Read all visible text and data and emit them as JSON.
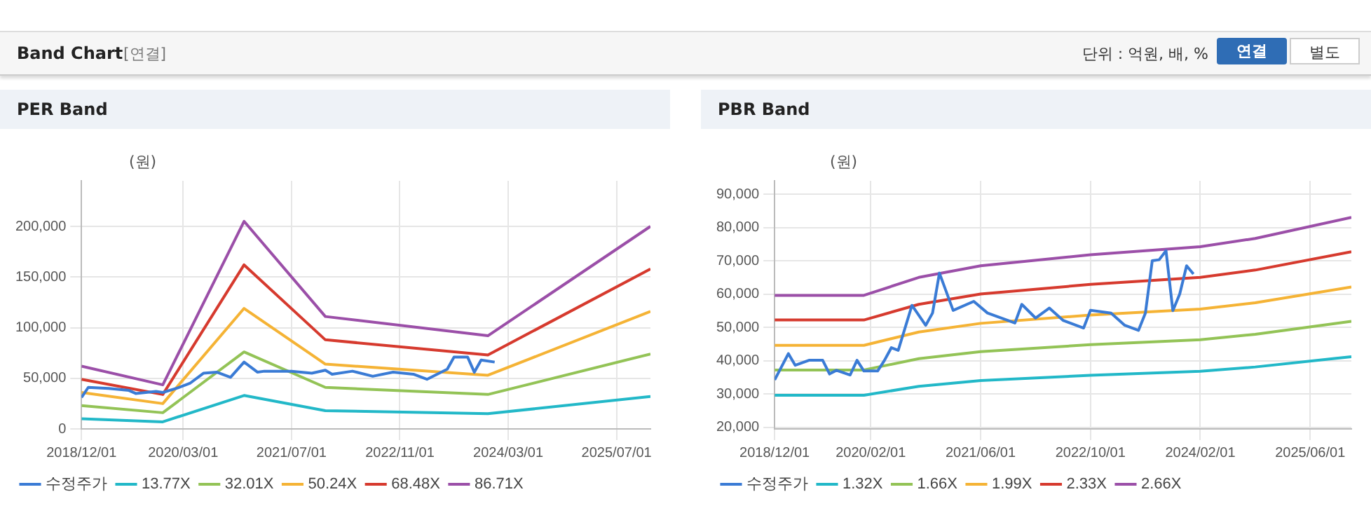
{
  "chart_data": [
    {
      "type": "line",
      "title": "PER Band",
      "ylabel": "(원)",
      "annotations": [
        "Band Chart",
        "[연결]",
        "단위 : 억원, 배, %",
        "연결",
        "별도"
      ],
      "xlim": [
        "2018-12",
        "2025-12"
      ],
      "xticks": [
        {
          "value": "2018-12",
          "label": "2018/12/01"
        },
        {
          "value": "2020-03",
          "label": "2020/03/01"
        },
        {
          "value": "2021-07",
          "label": "2021/07/01"
        },
        {
          "value": "2022-11",
          "label": "2022/11/01"
        },
        {
          "value": "2024-03",
          "label": "2024/03/01"
        },
        {
          "value": "2025-07",
          "label": "2025/07/01"
        }
      ],
      "ylim": [
        0,
        245000
      ],
      "yticks": [
        {
          "value": 0,
          "label": "0"
        },
        {
          "value": 50000,
          "label": "50,000"
        },
        {
          "value": 100000,
          "label": "100,000"
        },
        {
          "value": 150000,
          "label": "150,000"
        },
        {
          "value": 200000,
          "label": "200,000"
        }
      ],
      "grid": true,
      "legend": "bottom",
      "series": [
        {
          "name": "수정주가",
          "color": "#3a7bd5",
          "x": [
            "2018-12",
            "2019-01",
            "2019-04",
            "2019-07",
            "2019-08",
            "2019-11",
            "2019-12",
            "2020-02",
            "2020-04",
            "2020-06",
            "2020-08",
            "2020-10",
            "2020-12",
            "2021-02",
            "2021-03",
            "2021-07",
            "2021-10",
            "2021-12",
            "2022-01",
            "2022-04",
            "2022-07",
            "2022-10",
            "2023-01",
            "2023-03",
            "2023-06",
            "2023-07",
            "2023-09",
            "2023-10",
            "2023-11",
            "2024-01"
          ],
          "values": [
            31000,
            41000,
            40000,
            38000,
            35000,
            37000,
            36000,
            40000,
            45000,
            55000,
            56000,
            51000,
            66000,
            56000,
            57000,
            57000,
            55000,
            58000,
            54000,
            57000,
            52000,
            56000,
            54000,
            49000,
            59000,
            71000,
            71000,
            56000,
            68000,
            66000
          ]
        },
        {
          "name": "13.77X",
          "color": "#22b8c8",
          "x": [
            "2018-12",
            "2019-12",
            "2020-12",
            "2021-12",
            "2023-12",
            "2025-12"
          ],
          "values": [
            10000,
            7000,
            33000,
            18000,
            15000,
            32000
          ]
        },
        {
          "name": "32.01X",
          "color": "#93c356",
          "x": [
            "2018-12",
            "2019-12",
            "2020-12",
            "2021-12",
            "2023-12",
            "2025-12"
          ],
          "values": [
            23000,
            16000,
            76000,
            41000,
            34000,
            74000
          ]
        },
        {
          "name": "50.24X",
          "color": "#f5b335",
          "x": [
            "2018-12",
            "2019-12",
            "2020-12",
            "2021-12",
            "2023-12",
            "2025-12"
          ],
          "values": [
            36000,
            25000,
            119000,
            64000,
            53000,
            116000
          ]
        },
        {
          "name": "68.48X",
          "color": "#d63a2e",
          "x": [
            "2018-12",
            "2019-12",
            "2020-12",
            "2021-12",
            "2023-12",
            "2025-12"
          ],
          "values": [
            49000,
            34000,
            162000,
            88000,
            73000,
            158000
          ]
        },
        {
          "name": "86.71X",
          "color": "#9b4fa8",
          "x": [
            "2018-12",
            "2019-12",
            "2020-12",
            "2021-12",
            "2023-12",
            "2025-12"
          ],
          "values": [
            62000,
            43500,
            205000,
            111000,
            92000,
            200000
          ]
        }
      ]
    },
    {
      "type": "line",
      "title": "PBR Band",
      "ylabel": "(원)",
      "xlim": [
        "2018-12",
        "2025-12"
      ],
      "xticks": [
        {
          "value": "2018-12",
          "label": "2018/12/01"
        },
        {
          "value": "2020-02",
          "label": "2020/02/01"
        },
        {
          "value": "2021-06",
          "label": "2021/06/01"
        },
        {
          "value": "2022-10",
          "label": "2022/10/01"
        },
        {
          "value": "2024-02",
          "label": "2024/02/01"
        },
        {
          "value": "2025-06",
          "label": "2025/06/01"
        }
      ],
      "ylim": [
        19500,
        94000
      ],
      "yticks": [
        {
          "value": 20000,
          "label": "20,000"
        },
        {
          "value": 30000,
          "label": "30,000"
        },
        {
          "value": 40000,
          "label": "40,000"
        },
        {
          "value": 50000,
          "label": "50,000"
        },
        {
          "value": 60000,
          "label": "60,000"
        },
        {
          "value": 70000,
          "label": "70,000"
        },
        {
          "value": 80000,
          "label": "80,000"
        },
        {
          "value": 90000,
          "label": "90,000"
        }
      ],
      "grid": true,
      "legend": "bottom",
      "series": [
        {
          "name": "수정주가",
          "color": "#3a7bd5",
          "x": [
            "2018-12",
            "2019-02",
            "2019-03",
            "2019-05",
            "2019-07",
            "2019-08",
            "2019-09",
            "2019-11",
            "2019-12",
            "2020-01",
            "2020-03",
            "2020-04",
            "2020-05",
            "2020-06",
            "2020-08",
            "2020-10",
            "2020-11",
            "2020-12",
            "2021-02",
            "2021-05",
            "2021-07",
            "2021-11",
            "2021-12",
            "2022-02",
            "2022-04",
            "2022-06",
            "2022-09",
            "2022-10",
            "2023-01",
            "2023-03",
            "2023-05",
            "2023-06",
            "2023-07",
            "2023-08",
            "2023-09",
            "2023-10",
            "2023-11",
            "2023-12",
            "2024-01"
          ],
          "values": [
            34200,
            42100,
            38600,
            40100,
            40100,
            36000,
            37100,
            35700,
            40100,
            36900,
            36900,
            40100,
            43900,
            43100,
            56600,
            50600,
            54300,
            66300,
            55100,
            57800,
            54300,
            51300,
            56900,
            52800,
            55800,
            52100,
            49800,
            55100,
            54300,
            50600,
            49100,
            54300,
            70000,
            70300,
            73000,
            55000,
            60000,
            68500,
            66000
          ]
        },
        {
          "name": "1.32X",
          "color": "#22b8c8",
          "x": [
            "2018-12",
            "2020-01",
            "2020-09",
            "2021-06",
            "2022-10",
            "2024-02",
            "2024-10",
            "2025-12"
          ],
          "values": [
            29600,
            29600,
            32300,
            34000,
            35600,
            36800,
            38100,
            41200
          ]
        },
        {
          "name": "1.66X",
          "color": "#93c356",
          "x": [
            "2018-12",
            "2020-01",
            "2020-09",
            "2021-06",
            "2022-10",
            "2024-02",
            "2024-10",
            "2025-12"
          ],
          "values": [
            37200,
            37200,
            40600,
            42700,
            44800,
            46300,
            47900,
            51800
          ]
        },
        {
          "name": "1.99X",
          "color": "#f5b335",
          "x": [
            "2018-12",
            "2020-01",
            "2020-09",
            "2021-06",
            "2022-10",
            "2024-02",
            "2024-10",
            "2025-12"
          ],
          "values": [
            44600,
            44600,
            48600,
            51200,
            53700,
            55500,
            57400,
            62100
          ]
        },
        {
          "name": "2.33X",
          "color": "#d63a2e",
          "x": [
            "2018-12",
            "2020-01",
            "2020-09",
            "2021-06",
            "2022-10",
            "2024-02",
            "2024-10",
            "2025-12"
          ],
          "values": [
            52200,
            52200,
            56900,
            60000,
            62900,
            65000,
            67200,
            72700
          ]
        },
        {
          "name": "2.66X",
          "color": "#9b4fa8",
          "x": [
            "2018-12",
            "2020-01",
            "2020-09",
            "2021-06",
            "2022-10",
            "2024-02",
            "2024-10",
            "2025-12"
          ],
          "values": [
            59600,
            59600,
            65000,
            68500,
            71800,
            74200,
            76700,
            83000
          ]
        }
      ]
    }
  ]
}
